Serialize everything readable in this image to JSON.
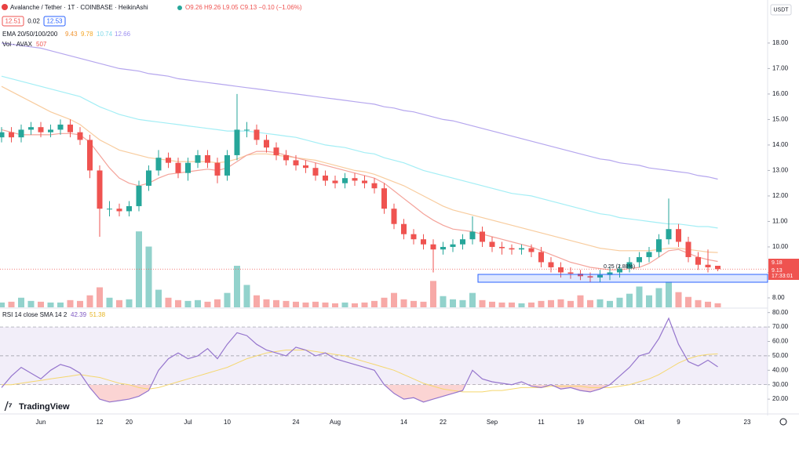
{
  "header": {
    "symbol": "Avalanche / Tether · 1T · COINBASE · HeikinAshi",
    "ohlc": "O9.26 H9.26 L9.05 C9.13 −0.10 (−1.06%)",
    "sell": "12.51",
    "spread": "0.02",
    "buy": "12.53",
    "currency": "USDT",
    "logo": "TradingView"
  },
  "price_tags": {
    "last": "9.18",
    "close": "9.13",
    "countdown": "17:33:01"
  },
  "chart_data": [
    {
      "type": "candlestick",
      "title": "Avalanche / Tether · 1T · COINBASE · HeikinAshi",
      "categories": [
        null,
        null,
        null,
        null,
        "Jun",
        null,
        null,
        null,
        null,
        null,
        "12",
        null,
        null,
        "20",
        null,
        null,
        null,
        null,
        null,
        "Jul",
        null,
        null,
        null,
        "10",
        null,
        null,
        null,
        null,
        null,
        null,
        "24",
        null,
        null,
        null,
        "Aug",
        null,
        null,
        null,
        null,
        null,
        null,
        "14",
        null,
        null,
        null,
        "22",
        null,
        null,
        null,
        null,
        "Sep",
        null,
        null,
        null,
        null,
        "11",
        null,
        null,
        null,
        "19",
        null,
        null,
        null,
        null,
        null,
        "Okt",
        null,
        null,
        null,
        "9",
        null,
        null,
        null,
        null,
        null,
        null,
        "23",
        null,
        null,
        null,
        null
      ],
      "open": [
        14.3,
        14.5,
        14.3,
        14.6,
        14.7,
        14.5,
        14.6,
        14.8,
        14.5,
        14.2,
        13.0,
        11.5,
        11.5,
        11.4,
        11.6,
        12.4,
        13.0,
        13.5,
        13.3,
        12.9,
        13.3,
        13.6,
        13.3,
        12.8,
        13.6,
        14.6,
        14.6,
        14.2,
        13.9,
        13.6,
        13.4,
        13.2,
        13.1,
        12.8,
        12.6,
        12.5,
        12.7,
        12.6,
        12.5,
        12.3,
        11.5,
        10.9,
        10.5,
        10.3,
        10.1,
        9.9,
        10.0,
        10.1,
        10.3,
        10.6,
        10.2,
        10.0,
        9.95,
        9.9,
        9.95,
        9.8,
        9.4,
        9.2,
        9.0,
        8.95,
        8.85,
        8.8,
        8.9,
        9.0,
        9.15,
        9.4,
        9.6,
        9.8,
        10.3,
        10.7,
        10.2,
        9.6,
        9.3,
        9.26,
        null,
        null,
        null,
        null,
        null,
        null,
        null
      ],
      "high": [
        14.7,
        14.7,
        14.8,
        14.9,
        14.9,
        14.8,
        15.0,
        15.0,
        14.7,
        14.4,
        13.2,
        11.8,
        11.7,
        11.8,
        12.6,
        13.2,
        13.8,
        13.7,
        13.5,
        13.5,
        13.8,
        13.8,
        13.5,
        13.8,
        16.0,
        14.9,
        14.8,
        14.4,
        14.1,
        13.8,
        13.6,
        13.4,
        13.3,
        13.0,
        12.8,
        12.9,
        12.9,
        12.8,
        12.7,
        12.5,
        11.7,
        11.1,
        10.7,
        10.5,
        10.3,
        10.2,
        10.3,
        10.5,
        11.2,
        10.8,
        10.4,
        10.2,
        10.1,
        10.1,
        10.1,
        10.0,
        9.6,
        9.4,
        9.2,
        9.1,
        9.0,
        9.1,
        9.2,
        9.3,
        9.6,
        9.8,
        10.0,
        10.5,
        11.9,
        10.9,
        10.4,
        9.8,
        9.9,
        9.26,
        null,
        null,
        null,
        null,
        null,
        null,
        null
      ],
      "low": [
        14.1,
        14.1,
        14.1,
        14.4,
        14.3,
        14.3,
        14.4,
        14.3,
        14.0,
        12.7,
        10.4,
        11.2,
        11.2,
        11.2,
        11.4,
        12.2,
        12.8,
        13.1,
        12.7,
        12.6,
        13.1,
        13.1,
        12.5,
        12.6,
        13.4,
        14.3,
        14.0,
        13.7,
        13.4,
        13.2,
        13.0,
        12.9,
        12.6,
        12.4,
        12.3,
        12.3,
        12.4,
        12.3,
        12.1,
        11.3,
        10.7,
        10.3,
        10.1,
        9.9,
        9.0,
        9.7,
        9.8,
        9.9,
        10.1,
        10.0,
        9.8,
        9.7,
        9.7,
        9.7,
        9.6,
        9.2,
        9.0,
        8.8,
        8.75,
        8.7,
        8.6,
        8.6,
        8.7,
        8.8,
        9.0,
        9.2,
        9.4,
        9.6,
        10.1,
        10.0,
        9.4,
        9.1,
        9.0,
        9.05,
        null,
        null,
        null,
        null,
        null,
        null,
        null
      ],
      "close": [
        14.5,
        14.3,
        14.6,
        14.7,
        14.5,
        14.6,
        14.8,
        14.5,
        14.2,
        13.0,
        11.5,
        11.5,
        11.4,
        11.6,
        12.4,
        13.0,
        13.5,
        13.3,
        12.9,
        13.3,
        13.6,
        13.3,
        12.8,
        13.6,
        14.6,
        14.6,
        14.2,
        13.9,
        13.6,
        13.4,
        13.2,
        13.1,
        12.8,
        12.6,
        12.5,
        12.7,
        12.6,
        12.5,
        12.3,
        11.5,
        10.9,
        10.5,
        10.3,
        10.1,
        9.9,
        10.0,
        10.1,
        10.3,
        10.6,
        10.2,
        10.0,
        9.95,
        9.9,
        9.95,
        9.8,
        9.4,
        9.2,
        9.0,
        8.95,
        8.85,
        8.8,
        8.9,
        9.0,
        9.15,
        9.4,
        9.6,
        9.8,
        10.3,
        10.7,
        10.2,
        9.6,
        9.3,
        9.2,
        9.13,
        null,
        null,
        null,
        null,
        null,
        null,
        null
      ],
      "up_color": "#26a69a",
      "down_color": "#ef5350",
      "ema_legend": "EMA 20/50/100/200",
      "series": [
        {
          "color": "#f4a39a",
          "legend_color": "#f0932f",
          "values": [
            14.6,
            14.5,
            14.4,
            14.4,
            14.4,
            14.4,
            14.45,
            14.45,
            14.4,
            14.1,
            13.6,
            13.1,
            12.7,
            12.5,
            12.4,
            12.5,
            12.7,
            12.85,
            12.9,
            12.95,
            13.0,
            13.05,
            13.0,
            13.1,
            13.35,
            13.6,
            13.75,
            13.75,
            13.7,
            13.6,
            13.5,
            13.4,
            13.3,
            13.2,
            13.1,
            13.0,
            12.9,
            12.8,
            12.7,
            12.5,
            12.2,
            11.9,
            11.6,
            11.3,
            11.05,
            10.85,
            10.7,
            10.65,
            10.6,
            10.5,
            10.4,
            10.3,
            10.2,
            10.1,
            10.0,
            9.85,
            9.7,
            9.55,
            9.4,
            9.3,
            9.2,
            9.15,
            9.1,
            9.1,
            9.15,
            9.2,
            9.35,
            9.6,
            9.85,
            9.9,
            9.75,
            9.6,
            9.5,
            9.43,
            null,
            null,
            null,
            null,
            null,
            null,
            null
          ]
        },
        {
          "color": "#f8cc9e",
          "legend_color": "#f5a623",
          "values": [
            16.3,
            16.1,
            15.9,
            15.7,
            15.5,
            15.3,
            15.15,
            15.0,
            14.8,
            14.5,
            14.2,
            14.0,
            13.8,
            13.7,
            13.6,
            13.5,
            13.45,
            13.4,
            13.35,
            13.35,
            13.35,
            13.35,
            13.3,
            13.35,
            13.45,
            13.6,
            13.65,
            13.65,
            13.6,
            13.55,
            13.5,
            13.45,
            13.4,
            13.3,
            13.2,
            13.1,
            13.0,
            12.95,
            12.85,
            12.7,
            12.55,
            12.4,
            12.2,
            12.0,
            11.8,
            11.6,
            11.45,
            11.35,
            11.25,
            11.15,
            11.05,
            10.95,
            10.85,
            10.75,
            10.65,
            10.55,
            10.45,
            10.35,
            10.25,
            10.15,
            10.05,
            9.95,
            9.9,
            9.85,
            9.85,
            9.85,
            9.85,
            9.9,
            9.95,
            9.95,
            9.9,
            9.85,
            9.8,
            9.78,
            null,
            null,
            null,
            null,
            null,
            null,
            null
          ]
        },
        {
          "color": "#a3eef5",
          "legend_color": "#7fd8e8",
          "values": [
            16.7,
            16.6,
            16.5,
            16.4,
            16.3,
            16.2,
            16.1,
            16.0,
            15.9,
            15.7,
            15.5,
            15.35,
            15.2,
            15.1,
            15.0,
            14.95,
            14.9,
            14.85,
            14.8,
            14.75,
            14.7,
            14.65,
            14.6,
            14.55,
            14.55,
            14.55,
            14.5,
            14.45,
            14.4,
            14.35,
            14.3,
            14.2,
            14.1,
            14.0,
            13.95,
            13.9,
            13.8,
            13.7,
            13.65,
            13.5,
            13.4,
            13.3,
            13.15,
            13.0,
            12.9,
            12.8,
            12.7,
            12.6,
            12.5,
            12.4,
            12.3,
            12.2,
            12.1,
            12.05,
            12.0,
            11.9,
            11.8,
            11.7,
            11.6,
            11.5,
            11.4,
            11.3,
            11.25,
            11.15,
            11.1,
            11.05,
            11.0,
            10.95,
            10.9,
            10.9,
            10.85,
            10.8,
            10.8,
            10.74,
            null,
            null,
            null,
            null,
            null,
            null,
            null
          ]
        },
        {
          "color": "#b5a6ee",
          "legend_color": "#9b8ef0",
          "values": [
            18.0,
            17.95,
            17.9,
            17.85,
            17.8,
            17.7,
            17.6,
            17.5,
            17.4,
            17.3,
            17.2,
            17.1,
            17.0,
            16.95,
            16.9,
            16.8,
            16.75,
            16.7,
            16.6,
            16.55,
            16.5,
            16.45,
            16.4,
            16.35,
            16.3,
            16.25,
            16.2,
            16.15,
            16.1,
            16.05,
            16.0,
            15.95,
            15.9,
            15.85,
            15.8,
            15.75,
            15.7,
            15.65,
            15.6,
            15.5,
            15.45,
            15.35,
            15.3,
            15.2,
            15.1,
            15.0,
            14.95,
            14.85,
            14.75,
            14.65,
            14.55,
            14.45,
            14.35,
            14.25,
            14.15,
            14.05,
            13.95,
            13.85,
            13.75,
            13.65,
            13.55,
            13.45,
            13.4,
            13.3,
            13.25,
            13.2,
            13.1,
            13.05,
            13.0,
            12.95,
            12.9,
            12.8,
            12.75,
            12.66,
            null,
            null,
            null,
            null,
            null,
            null,
            null
          ]
        }
      ],
      "volume": {
        "label": "Vol · AVAX",
        "vlim": [
          0,
          36000
        ],
        "values": [
          600,
          700,
          1200,
          800,
          700,
          600,
          600,
          900,
          800,
          1500,
          2500,
          1200,
          900,
          1000,
          9500,
          7600,
          2200,
          1200,
          900,
          800,
          900,
          700,
          1000,
          1800,
          5200,
          2800,
          1500,
          1000,
          900,
          800,
          700,
          600,
          700,
          600,
          500,
          600,
          500,
          600,
          800,
          1200,
          1800,
          1000,
          800,
          700,
          3300,
          1400,
          1000,
          900,
          1800,
          900,
          700,
          600,
          600,
          500,
          600,
          800,
          900,
          1000,
          800,
          1500,
          900,
          1000,
          800,
          1200,
          1700,
          2600,
          1500,
          2400,
          3200,
          1900,
          1300,
          900,
          700,
          507,
          null,
          null,
          null,
          null,
          null,
          null,
          null
        ]
      },
      "annotations": [
        "0.25 (2.88%)"
      ],
      "ylim": [
        7.63,
        18.92
      ],
      "yticks": [
        {
          "value": 8,
          "label": "8.00"
        },
        {
          "value": 9,
          "label": "9.00"
        },
        {
          "value": 10,
          "label": "10.00"
        },
        {
          "value": 11,
          "label": "11.00"
        },
        {
          "value": 12,
          "label": "12.00"
        },
        {
          "value": 13,
          "label": "13.00"
        },
        {
          "value": 14,
          "label": "14.00"
        },
        {
          "value": 15,
          "label": "15.00"
        },
        {
          "value": 16,
          "label": "16.00"
        },
        {
          "value": 17,
          "label": "17.00"
        },
        {
          "value": 18,
          "label": "18.00"
        }
      ],
      "grid": false
    },
    {
      "type": "line",
      "title": "RSI 14 close SMA 14 2",
      "series": [
        {
          "color": "#9575cd",
          "values": [
            28,
            36,
            42,
            38,
            34,
            40,
            44,
            42,
            38,
            28,
            20,
            18,
            19,
            20,
            22,
            26,
            40,
            48,
            52,
            48,
            50,
            55,
            48,
            58,
            66,
            64,
            58,
            54,
            52,
            50,
            56,
            54,
            50,
            52,
            48,
            46,
            44,
            42,
            40,
            30,
            24,
            20,
            21,
            18,
            20,
            22,
            24,
            26,
            40,
            34,
            32,
            31,
            30,
            32,
            29,
            28,
            30,
            27,
            28,
            26,
            25,
            27,
            30,
            36,
            42,
            50,
            52,
            62,
            76,
            58,
            46,
            43,
            47,
            42.39,
            null,
            null,
            null,
            null,
            null,
            null,
            null
          ]
        },
        {
          "color": "#f5d76e",
          "values": [
            30,
            30,
            31,
            32,
            33,
            34,
            35,
            36,
            37,
            36,
            35,
            33,
            31,
            30,
            28,
            27,
            28,
            30,
            32,
            34,
            36,
            38,
            40,
            42,
            45,
            48,
            50,
            52,
            53,
            54,
            54,
            54,
            53,
            52,
            51,
            50,
            48,
            46,
            44,
            42,
            40,
            37,
            34,
            31,
            29,
            27,
            26,
            25,
            25,
            25,
            26,
            26,
            27,
            28,
            28,
            28,
            29,
            29,
            29,
            29,
            28,
            28,
            28,
            29,
            30,
            32,
            34,
            37,
            41,
            45,
            48,
            50,
            51,
            51.38,
            null,
            null,
            null,
            null,
            null,
            null,
            null
          ]
        }
      ],
      "band": [
        30,
        70
      ],
      "midline": 50,
      "ylim": [
        13,
        82
      ],
      "yticks": [
        {
          "value": 20,
          "label": "20.00"
        },
        {
          "value": 30,
          "label": "30.00"
        },
        {
          "value": 40,
          "label": "40.00"
        },
        {
          "value": 50,
          "label": "50.00"
        },
        {
          "value": 60,
          "label": "60.00"
        },
        {
          "value": 70,
          "label": "70.00"
        },
        {
          "value": 80,
          "label": "80.00"
        }
      ]
    }
  ]
}
